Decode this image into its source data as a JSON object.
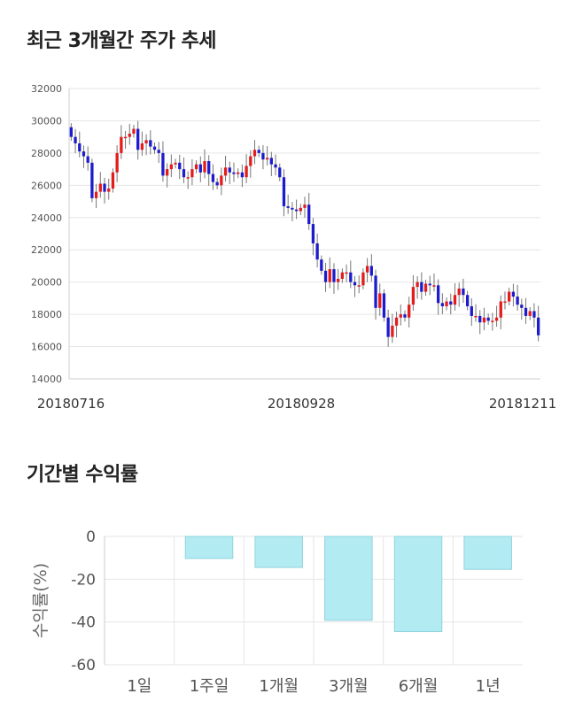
{
  "titles": {
    "price_trend": "최근 3개월간 주가 추세",
    "period_return": "기간별 수익률"
  },
  "colors": {
    "up": "#e31c1c",
    "down": "#1c1ccc",
    "bar_fill": "#b3ebf2",
    "bar_stroke": "#8fd3dd",
    "grid": "#e6e6e6",
    "axis_text": "#555555"
  },
  "chart_data": [
    {
      "type": "candlestick",
      "title": "최근 3개월간 주가 추세",
      "ylim": [
        14000,
        32000
      ],
      "y_ticks": [
        "14000",
        "16000",
        "18000",
        "20000",
        "22000",
        "24000",
        "26000",
        "28000",
        "30000",
        "32000"
      ],
      "x_tick_labels": [
        "20180716",
        "20180928",
        "20181211"
      ],
      "grid": true,
      "closes": [
        29000,
        28600,
        28100,
        27800,
        27400,
        25200,
        25600,
        26100,
        25600,
        25800,
        26800,
        28000,
        29000,
        29000,
        29200,
        29500,
        28200,
        28600,
        28800,
        28400,
        28200,
        28000,
        26600,
        27000,
        27300,
        27400,
        27000,
        26500,
        26500,
        27000,
        27300,
        26800,
        27500,
        26700,
        26200,
        26000,
        26600,
        27100,
        26800,
        26700,
        26800,
        26500,
        27200,
        27800,
        28200,
        28000,
        27600,
        27700,
        27300,
        27100,
        26500,
        24700,
        24600,
        24500,
        24400,
        24600,
        24800,
        23600,
        22400,
        21400,
        20700,
        20000,
        20800,
        20000,
        20200,
        20600,
        20600,
        20000,
        19800,
        19800,
        20600,
        21000,
        20400,
        18400,
        19300,
        17800,
        16600,
        17300,
        17800,
        18000,
        17800,
        18600,
        19700,
        20000,
        19400,
        19900,
        19800,
        19800,
        18700,
        18500,
        18800,
        18600,
        19200,
        19600,
        19200,
        18500,
        17900,
        17900,
        17500,
        17800,
        17600,
        17600,
        17800,
        18800,
        18800,
        19400,
        19100,
        18600,
        18400,
        17900,
        18200,
        17800,
        16700
      ],
      "opens": [
        29600,
        29000,
        28600,
        28100,
        27800,
        27400,
        25200,
        25600,
        26100,
        25600,
        25800,
        26800,
        28000,
        29000,
        29000,
        29200,
        29500,
        28200,
        28600,
        28800,
        28400,
        28200,
        28000,
        26600,
        27000,
        27300,
        27400,
        27000,
        26500,
        26500,
        27000,
        27300,
        26800,
        27500,
        26700,
        26200,
        26000,
        26600,
        27100,
        26800,
        26700,
        26800,
        26500,
        27200,
        27800,
        28200,
        28000,
        27600,
        27700,
        27300,
        27100,
        26500,
        24700,
        24600,
        24500,
        24400,
        24600,
        24800,
        23600,
        22400,
        21400,
        20700,
        20000,
        20800,
        20000,
        20200,
        20600,
        20600,
        20000,
        19800,
        19800,
        20600,
        21000,
        20400,
        18400,
        19300,
        17800,
        16600,
        17300,
        17800,
        18000,
        17800,
        18600,
        19700,
        20000,
        19400,
        19900,
        19800,
        19800,
        18700,
        18500,
        18800,
        18600,
        19200,
        19600,
        19200,
        18500,
        17900,
        17900,
        17500,
        17800,
        17600,
        17600,
        17800,
        18800,
        18800,
        19400,
        19100,
        18600,
        18400,
        17900,
        18200,
        17800
      ]
    },
    {
      "type": "bar",
      "title": "기간별 수익률",
      "categories": [
        "1일",
        "1주일",
        "1개월",
        "3개월",
        "6개월",
        "1년"
      ],
      "values": [
        0,
        -10.3,
        -14.5,
        -39.2,
        -44.5,
        -15.4
      ],
      "ylabel": "수익률(%)",
      "ylim": [
        -60,
        0
      ],
      "y_ticks": [
        "0",
        "-20",
        "-40",
        "-60"
      ],
      "grid": true
    }
  ]
}
